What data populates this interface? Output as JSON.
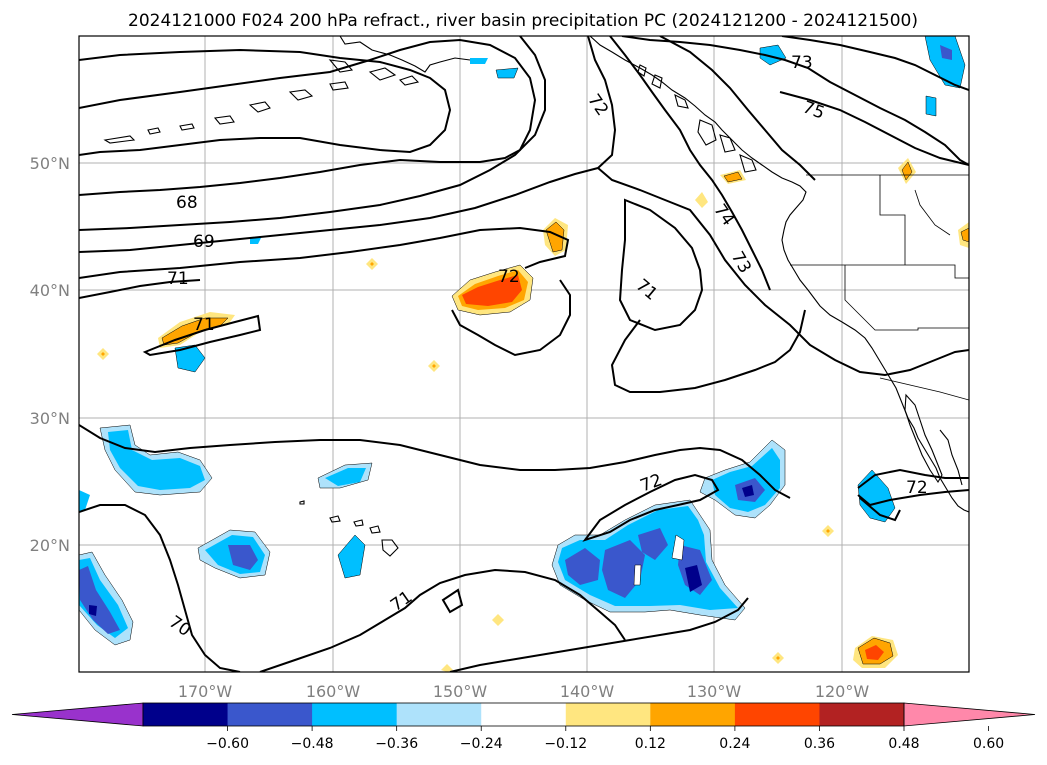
{
  "title": "2024121000 F024 200 hPa refract., river basin precipitation PC (2024121200 - 2024121500)",
  "lon_labels": [
    "170°W",
    "160°W",
    "150°W",
    "140°W",
    "130°W",
    "120°W"
  ],
  "lat_labels": [
    "50°N",
    "40°N",
    "30°N",
    "20°N"
  ],
  "contour_labels": [
    {
      "text": "73"
    },
    {
      "text": "75"
    },
    {
      "text": "72"
    },
    {
      "text": "68"
    },
    {
      "text": "69"
    },
    {
      "text": "71"
    },
    {
      "text": "71"
    },
    {
      "text": "72"
    },
    {
      "text": "74"
    },
    {
      "text": "73"
    },
    {
      "text": "71"
    },
    {
      "text": "72"
    },
    {
      "text": "72"
    },
    {
      "text": "71"
    },
    {
      "text": "70"
    }
  ],
  "colorbar": {
    "ticks": [
      "−0.60",
      "−0.48",
      "−0.36",
      "−0.24",
      "−0.12",
      "0.12",
      "0.24",
      "0.36",
      "0.48",
      "0.60"
    ],
    "colors": [
      "#9932cc",
      "#00008b",
      "#3a57cc",
      "#00bfff",
      "#aee2fb",
      "#ffffff",
      "#ffe680",
      "#ffa500",
      "#ff4500",
      "#b22222",
      "#ff88aa"
    ]
  },
  "fill_colors": {
    "neg1": "#00bfff",
    "neg_light": "#aee2fb",
    "neg2": "#3a57cc",
    "neg3": "#00008b",
    "pos_light": "#ffe680",
    "pos1": "#ffa500",
    "pos2": "#ff4500"
  }
}
